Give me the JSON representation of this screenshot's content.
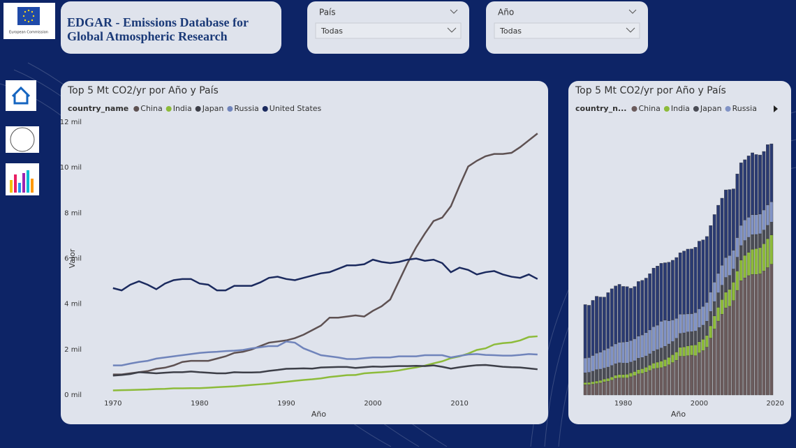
{
  "header": {
    "logo_text": "European Commission",
    "title": "EDGAR - Emissions Database for Global Atmospheric Research"
  },
  "filters": [
    {
      "label": "País",
      "value": "Todas"
    },
    {
      "label": "Año",
      "value": "Todas"
    }
  ],
  "chart_data": [
    {
      "type": "line",
      "title": "Top 5 Mt CO2/yr por Año y País",
      "legend_title": "country_name",
      "xlabel": "Año",
      "ylabel": "Valor",
      "x": [
        1970,
        1971,
        1972,
        1973,
        1974,
        1975,
        1976,
        1977,
        1978,
        1979,
        1980,
        1981,
        1982,
        1983,
        1984,
        1985,
        1986,
        1987,
        1988,
        1989,
        1990,
        1991,
        1992,
        1993,
        1994,
        1995,
        1996,
        1997,
        1998,
        1999,
        2000,
        2001,
        2002,
        2003,
        2004,
        2005,
        2006,
        2007,
        2008,
        2009,
        2010,
        2011,
        2012,
        2013,
        2014,
        2015,
        2016,
        2017,
        2018,
        2019
      ],
      "xlim": [
        1968,
        2019.5
      ],
      "xticks": [
        1970,
        1980,
        1990,
        2000,
        2010
      ],
      "ylim": [
        0,
        12000
      ],
      "yticks": [
        {
          "value": 0,
          "label": "0 mil"
        },
        {
          "value": 2000,
          "label": "2 mil"
        },
        {
          "value": 4000,
          "label": "4 mil"
        },
        {
          "value": 6000,
          "label": "6 mil"
        },
        {
          "value": 8000,
          "label": "8 mil"
        },
        {
          "value": 10000,
          "label": "10 mil"
        },
        {
          "value": 12000,
          "label": "12 mil"
        }
      ],
      "series": [
        {
          "name": "China",
          "color": "#5e5152",
          "values": [
            900,
            900,
            950,
            1000,
            1050,
            1150,
            1200,
            1300,
            1450,
            1500,
            1500,
            1500,
            1600,
            1700,
            1850,
            1900,
            2000,
            2150,
            2300,
            2350,
            2400,
            2500,
            2650,
            2850,
            3050,
            3400,
            3400,
            3450,
            3500,
            3450,
            3700,
            3900,
            4200,
            5000,
            5800,
            6500,
            7100,
            7650,
            7800,
            8300,
            9200,
            10050,
            10300,
            10500,
            10600,
            10600,
            10650,
            10900,
            11200,
            11500
          ]
        },
        {
          "name": "India",
          "color": "#8dbb3a",
          "values": [
            200,
            210,
            220,
            230,
            240,
            260,
            270,
            290,
            290,
            300,
            300,
            320,
            340,
            360,
            380,
            410,
            440,
            470,
            500,
            540,
            580,
            620,
            660,
            690,
            730,
            790,
            830,
            870,
            880,
            950,
            980,
            1000,
            1030,
            1080,
            1150,
            1210,
            1290,
            1390,
            1480,
            1620,
            1700,
            1820,
            1980,
            2050,
            2220,
            2280,
            2310,
            2400,
            2550,
            2580
          ]
        },
        {
          "name": "Japan",
          "color": "#3d3f48",
          "values": [
            850,
            880,
            920,
            1000,
            980,
            950,
            980,
            1000,
            1000,
            1030,
            1000,
            980,
            950,
            950,
            1000,
            990,
            990,
            1000,
            1060,
            1100,
            1150,
            1160,
            1170,
            1160,
            1210,
            1220,
            1230,
            1230,
            1190,
            1220,
            1250,
            1240,
            1260,
            1270,
            1270,
            1280,
            1270,
            1300,
            1240,
            1160,
            1220,
            1270,
            1310,
            1320,
            1280,
            1240,
            1220,
            1210,
            1170,
            1130
          ]
        },
        {
          "name": "Russia",
          "color": "#7084bb",
          "values": [
            1300,
            1300,
            1380,
            1450,
            1500,
            1600,
            1650,
            1700,
            1750,
            1800,
            1850,
            1880,
            1900,
            1930,
            1950,
            1980,
            2050,
            2100,
            2150,
            2150,
            2350,
            2300,
            2050,
            1900,
            1750,
            1700,
            1650,
            1580,
            1580,
            1620,
            1650,
            1650,
            1650,
            1700,
            1700,
            1700,
            1750,
            1750,
            1750,
            1650,
            1720,
            1780,
            1800,
            1760,
            1750,
            1730,
            1730,
            1760,
            1800,
            1780
          ]
        },
        {
          "name": "United States",
          "color": "#1b2a5e",
          "values": [
            4700,
            4600,
            4850,
            5000,
            4850,
            4650,
            4900,
            5050,
            5100,
            5100,
            4900,
            4850,
            4600,
            4600,
            4800,
            4800,
            4800,
            4950,
            5150,
            5200,
            5100,
            5050,
            5150,
            5250,
            5350,
            5400,
            5550,
            5700,
            5700,
            5750,
            5950,
            5850,
            5800,
            5850,
            5950,
            6000,
            5900,
            5950,
            5800,
            5400,
            5600,
            5500,
            5300,
            5400,
            5450,
            5300,
            5200,
            5150,
            5300,
            5100
          ]
        }
      ]
    },
    {
      "type": "bar",
      "stacked": true,
      "title": "Top 5 Mt CO2/yr por Año y País",
      "legend_title": "country_n...",
      "xlabel": "Año",
      "x": [
        1970,
        1971,
        1972,
        1973,
        1974,
        1975,
        1976,
        1977,
        1978,
        1979,
        1980,
        1981,
        1982,
        1983,
        1984,
        1985,
        1986,
        1987,
        1988,
        1989,
        1990,
        1991,
        1992,
        1993,
        1994,
        1995,
        1996,
        1997,
        1998,
        1999,
        2000,
        2001,
        2002,
        2003,
        2004,
        2005,
        2006,
        2007,
        2008,
        2009,
        2010,
        2011,
        2012,
        2013,
        2014,
        2015,
        2016,
        2017,
        2018,
        2019
      ],
      "xlim": [
        1968.5,
        2020.5
      ],
      "xticks": [
        1980,
        2000,
        2020
      ],
      "ylim": [
        0,
        24000
      ],
      "series": [
        {
          "name": "China",
          "color": "#6b5b5c",
          "values": [
            900,
            900,
            950,
            1000,
            1050,
            1150,
            1200,
            1300,
            1450,
            1500,
            1500,
            1500,
            1600,
            1700,
            1850,
            1900,
            2000,
            2150,
            2300,
            2350,
            2400,
            2500,
            2650,
            2850,
            3050,
            3400,
            3400,
            3450,
            3500,
            3450,
            3700,
            3900,
            4200,
            5000,
            5800,
            6500,
            7100,
            7650,
            7800,
            8300,
            9200,
            10050,
            10300,
            10500,
            10600,
            10600,
            10650,
            10900,
            11200,
            11500
          ]
        },
        {
          "name": "India",
          "color": "#8dbb3a",
          "values": [
            200,
            210,
            220,
            230,
            240,
            260,
            270,
            290,
            290,
            300,
            300,
            320,
            340,
            360,
            380,
            410,
            440,
            470,
            500,
            540,
            580,
            620,
            660,
            690,
            730,
            790,
            830,
            870,
            880,
            950,
            980,
            1000,
            1030,
            1080,
            1150,
            1210,
            1290,
            1390,
            1480,
            1620,
            1700,
            1820,
            1980,
            2050,
            2220,
            2280,
            2310,
            2400,
            2550,
            2580
          ]
        },
        {
          "name": "Japan",
          "color": "#4a4c55",
          "values": [
            850,
            880,
            920,
            1000,
            980,
            950,
            980,
            1000,
            1000,
            1030,
            1000,
            980,
            950,
            950,
            1000,
            990,
            990,
            1000,
            1060,
            1100,
            1150,
            1160,
            1170,
            1160,
            1210,
            1220,
            1230,
            1230,
            1190,
            1220,
            1250,
            1240,
            1260,
            1270,
            1270,
            1280,
            1270,
            1300,
            1240,
            1160,
            1220,
            1270,
            1310,
            1320,
            1280,
            1240,
            1220,
            1210,
            1170,
            1130
          ]
        },
        {
          "name": "Russia",
          "color": "#8193c6",
          "values": [
            1300,
            1300,
            1380,
            1450,
            1500,
            1600,
            1650,
            1700,
            1750,
            1800,
            1850,
            1880,
            1900,
            1930,
            1950,
            1980,
            2050,
            2100,
            2150,
            2150,
            2350,
            2300,
            2050,
            1900,
            1750,
            1700,
            1650,
            1580,
            1580,
            1620,
            1650,
            1650,
            1650,
            1700,
            1700,
            1700,
            1750,
            1750,
            1750,
            1650,
            1720,
            1780,
            1800,
            1760,
            1750,
            1730,
            1730,
            1760,
            1800,
            1780
          ]
        },
        {
          "name": "United States",
          "color": "#2a3a72",
          "values": [
            4700,
            4600,
            4850,
            5000,
            4850,
            4650,
            4900,
            5050,
            5100,
            5100,
            4900,
            4850,
            4600,
            4600,
            4800,
            4800,
            4800,
            4950,
            5150,
            5200,
            5100,
            5050,
            5150,
            5250,
            5350,
            5400,
            5550,
            5700,
            5700,
            5750,
            5950,
            5850,
            5800,
            5850,
            5950,
            6000,
            5900,
            5950,
            5800,
            5400,
            5600,
            5500,
            5300,
            5400,
            5450,
            5300,
            5200,
            5150,
            5300,
            5100
          ]
        }
      ]
    }
  ]
}
